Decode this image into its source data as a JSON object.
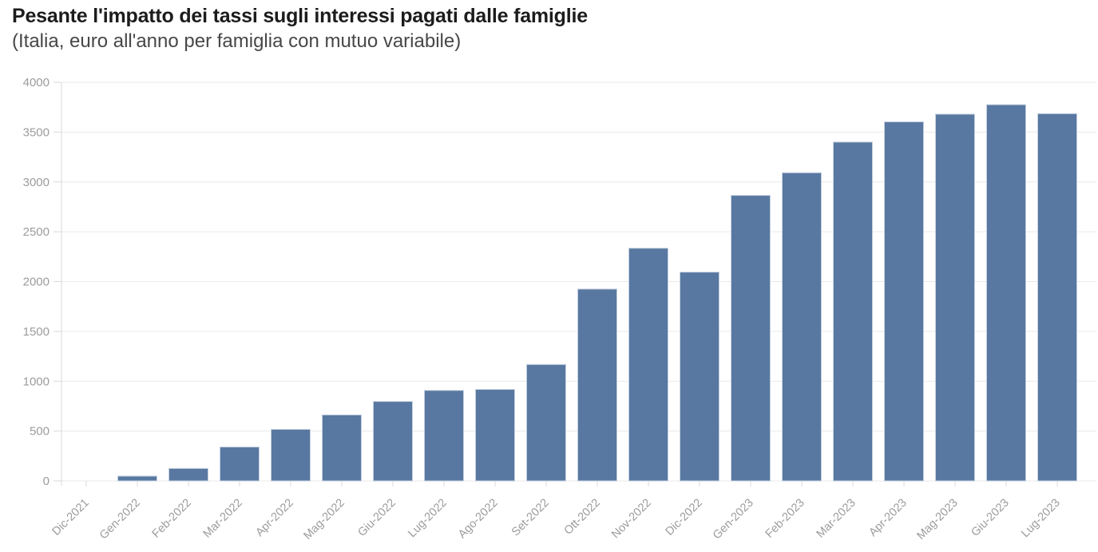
{
  "header": {
    "title": "Pesante l'impatto dei tassi sugli interessi pagati dalle famiglie",
    "subtitle": "(Italia, euro all'anno per famiglia con mutuo variabile)"
  },
  "colors": {
    "title": "#1c1c1c",
    "subtitle": "#474747",
    "bar_fill": "#5878a1",
    "bar_stroke": "#c4d0df",
    "grid": "#e9e9e9",
    "axis": "#d9d9d9",
    "tick_label": "#9c9c9c"
  },
  "chart_data": {
    "type": "bar",
    "title": "Pesante l'impatto dei tassi sugli interessi pagati dalle famiglie",
    "subtitle": "(Italia, euro all'anno per famiglia con mutuo variabile)",
    "categories": [
      "Dic-2021",
      "Gen-2022",
      "Feb-2022",
      "Mar-2022",
      "Apr-2022",
      "Mag-2022",
      "Giu-2022",
      "Lug-2022",
      "Ago-2022",
      "Set-2022",
      "Ott-2022",
      "Nov-2022",
      "Dic-2022",
      "Gen-2023",
      "Feb-2023",
      "Mar-2023",
      "Apr-2023",
      "Mag-2023",
      "Giu-2023",
      "Lug-2023"
    ],
    "values": [
      0,
      48,
      125,
      340,
      517,
      662,
      797,
      908,
      918,
      1168,
      1925,
      2335,
      2095,
      2865,
      3092,
      3400,
      3603,
      3680,
      3775,
      3685
    ],
    "xlabel": "",
    "ylabel": "",
    "ylim": [
      0,
      4000
    ],
    "ytick_step": 500,
    "grid": true,
    "legend": false,
    "x_tick_rotation_deg": -45
  }
}
